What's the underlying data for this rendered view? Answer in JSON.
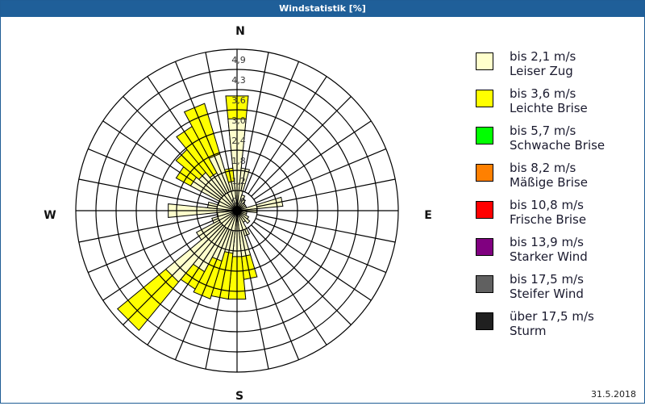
{
  "window": {
    "title": "Windstatistik [%]",
    "date": "31.5.2018",
    "title_bar_color": "#1f5f99"
  },
  "compass": {
    "north": "N",
    "east": "E",
    "south": "S",
    "west": "W"
  },
  "legend": [
    {
      "speed": "bis 2,1 m/s",
      "name": "Leiser Zug",
      "color": "#ffffcc"
    },
    {
      "speed": "bis 3,6 m/s",
      "name": "Leichte Brise",
      "color": "#ffff00"
    },
    {
      "speed": "bis 5,7 m/s",
      "name": "Schwache Brise",
      "color": "#00ff00"
    },
    {
      "speed": "bis 8,2 m/s",
      "name": "Mäßige Brise",
      "color": "#ff8000"
    },
    {
      "speed": "bis 10,8 m/s",
      "name": "Frische Brise",
      "color": "#ff0000"
    },
    {
      "speed": "bis 13,9 m/s",
      "name": "Starker Wind",
      "color": "#800080"
    },
    {
      "speed": "bis 17,5 m/s",
      "name": "Steifer Wind",
      "color": "#606060"
    },
    {
      "speed": "über 17,5 m/s",
      "name": "Sturm",
      "color": "#202020"
    }
  ],
  "chart_data": {
    "type": "wind-rose",
    "title": "Windstatistik [%]",
    "unit": "%",
    "ring_labels": [
      "0,6",
      "1,2",
      "1,8",
      "2,4",
      "3,0",
      "3,6",
      "4,3",
      "4,9"
    ],
    "rmax": 4.9,
    "sectors": 32,
    "sector_width_deg": 11.25,
    "directions_deg": [
      0,
      11.25,
      22.5,
      33.75,
      45,
      56.25,
      67.5,
      78.75,
      90,
      101.25,
      112.5,
      123.75,
      135,
      146.25,
      157.5,
      168.75,
      180,
      191.25,
      202.5,
      213.75,
      225,
      236.25,
      247.5,
      258.75,
      270,
      281.25,
      292.5,
      303.75,
      315,
      326.25,
      337.5,
      348.75
    ],
    "series": [
      {
        "name": "bis 2,1 m/s",
        "color": "#ffffcc",
        "values": [
          2.8,
          1.3,
          0.5,
          0.4,
          0.3,
          0.3,
          0.3,
          1.4,
          0.6,
          0.3,
          0.3,
          0.4,
          0.5,
          0.4,
          0.8,
          1.4,
          1.4,
          1.3,
          1.6,
          2.1,
          2.8,
          1.4,
          0.8,
          0.6,
          2.1,
          0.9,
          0.6,
          1.6,
          1.5,
          1.3,
          1.8,
          0.9
        ]
      },
      {
        "name": "bis 3,6 m/s",
        "color": "#ffff00",
        "values": [
          0.7,
          0,
          0,
          0,
          0,
          0,
          0,
          0,
          0,
          0,
          0,
          0,
          0,
          0,
          0,
          0.7,
          1.3,
          1.4,
          1.2,
          0.6,
          1.9,
          0,
          0,
          0,
          0,
          0,
          0,
          0.5,
          0.9,
          1.6,
          1.6,
          0.4
        ]
      },
      {
        "name": "bis 5,7 m/s",
        "color": "#00ff00",
        "values": [
          0,
          0,
          0,
          0,
          0,
          0,
          0,
          0,
          0,
          0,
          0,
          0,
          0,
          0,
          0,
          0,
          0,
          0,
          0,
          0,
          0,
          0,
          0,
          0,
          0,
          0,
          0,
          0,
          0,
          0,
          0,
          0
        ]
      },
      {
        "name": "bis 8,2 m/s",
        "color": "#ff8000",
        "values": [
          0,
          0,
          0,
          0,
          0,
          0,
          0,
          0,
          0,
          0,
          0,
          0,
          0,
          0,
          0,
          0,
          0,
          0,
          0,
          0,
          0,
          0,
          0,
          0,
          0,
          0,
          0,
          0,
          0,
          0,
          0,
          0
        ]
      },
      {
        "name": "bis 10,8 m/s",
        "color": "#ff0000",
        "values": [
          0,
          0,
          0,
          0,
          0,
          0,
          0,
          0,
          0,
          0,
          0,
          0,
          0,
          0,
          0,
          0,
          0,
          0,
          0,
          0,
          0,
          0,
          0,
          0,
          0,
          0,
          0,
          0,
          0,
          0,
          0,
          0
        ]
      },
      {
        "name": "bis 13,9 m/s",
        "color": "#800080",
        "values": [
          0,
          0,
          0,
          0,
          0,
          0,
          0,
          0,
          0,
          0,
          0,
          0,
          0,
          0,
          0,
          0,
          0,
          0,
          0,
          0,
          0,
          0,
          0,
          0,
          0,
          0,
          0,
          0,
          0,
          0,
          0,
          0
        ]
      },
      {
        "name": "bis 17,5 m/s",
        "color": "#606060",
        "values": [
          0,
          0,
          0,
          0,
          0,
          0,
          0,
          0,
          0,
          0,
          0,
          0,
          0,
          0,
          0,
          0,
          0,
          0,
          0,
          0,
          0,
          0,
          0,
          0,
          0,
          0,
          0,
          0,
          0,
          0,
          0,
          0
        ]
      },
      {
        "name": "über 17,5 m/s",
        "color": "#202020",
        "values": [
          0,
          0,
          0,
          0,
          0,
          0,
          0,
          0,
          0,
          0,
          0,
          0,
          0,
          0,
          0,
          0,
          0,
          0,
          0,
          0,
          0,
          0,
          0,
          0,
          0,
          0,
          0,
          0,
          0,
          0,
          0,
          0
        ]
      }
    ],
    "grid": true,
    "legend_position": "right"
  }
}
